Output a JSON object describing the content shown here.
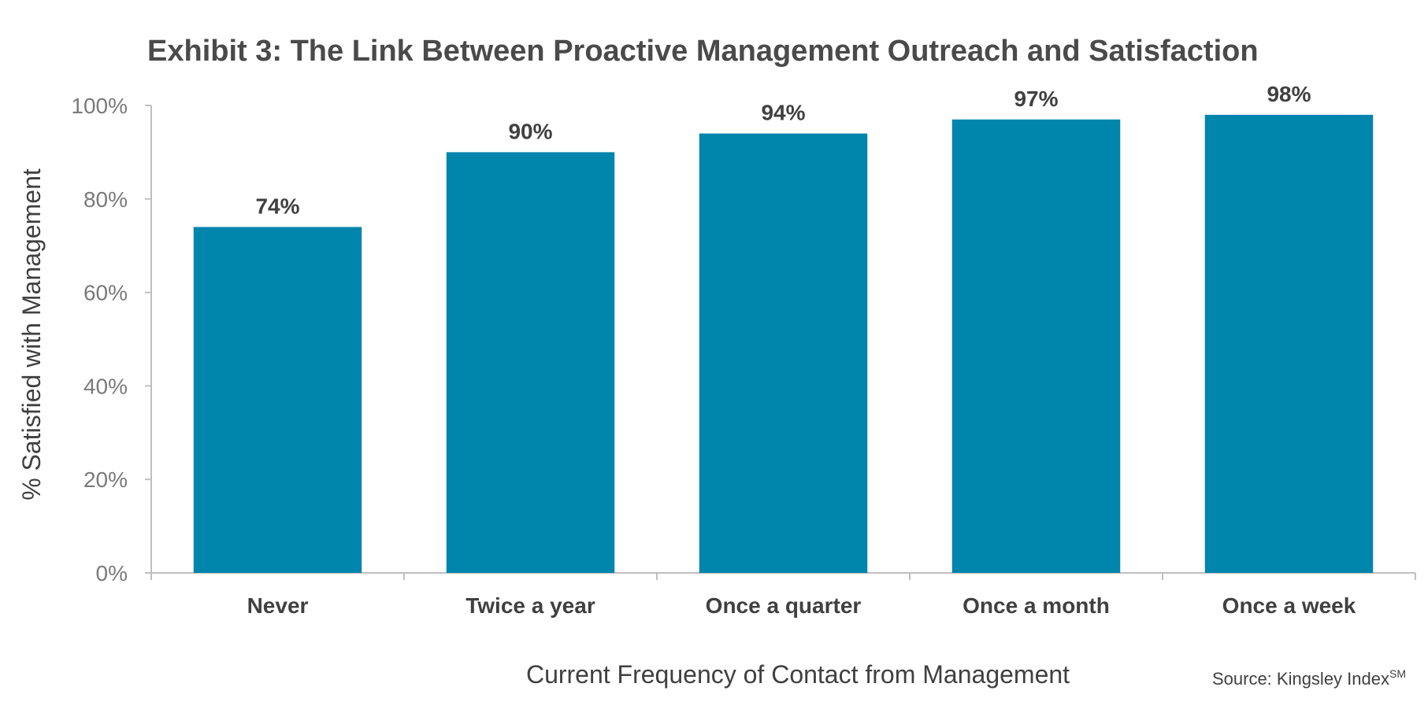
{
  "chart_data": {
    "type": "bar",
    "title": "Exhibit 3: The Link Between Proactive Management Outreach and Satisfaction",
    "xlabel": "Current Frequency of Contact from Management",
    "ylabel": "% Satisfied with Management",
    "categories": [
      "Never",
      "Twice a year",
      "Once a quarter",
      "Once a month",
      "Once a week"
    ],
    "values": [
      74,
      90,
      94,
      97,
      98
    ],
    "data_labels": [
      "74%",
      "90%",
      "94%",
      "97%",
      "98%"
    ],
    "ylim": [
      0,
      100
    ],
    "yticks": [
      0,
      20,
      40,
      60,
      80,
      100
    ],
    "ytick_labels": [
      "0%",
      "20%",
      "40%",
      "60%",
      "80%",
      "100%"
    ],
    "grid": false,
    "legend": "none",
    "bar_color": "#0085ad",
    "axis_color": "#bfbfbf"
  },
  "source": {
    "text": "Source: Kingsley Index",
    "superscript": "SM"
  }
}
